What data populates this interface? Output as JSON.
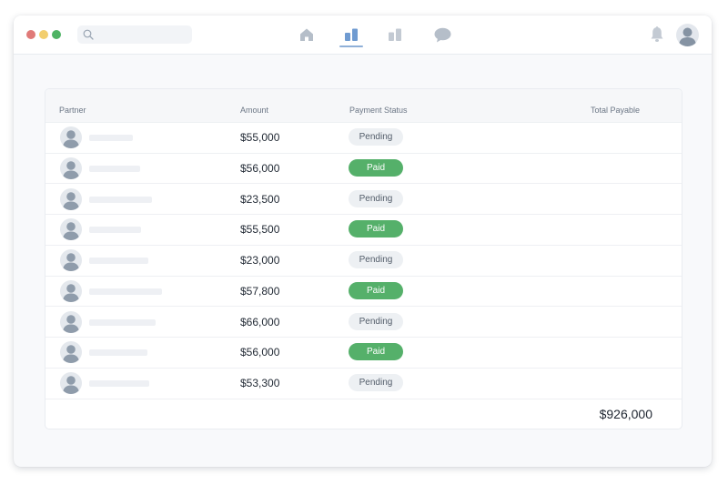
{
  "window": {
    "traffic_lights": [
      "close",
      "minimize",
      "maximize"
    ],
    "search": {
      "placeholder": "",
      "value": ""
    },
    "nav": [
      {
        "icon": "home-icon",
        "active": false
      },
      {
        "icon": "bar-chart-icon",
        "active": true
      },
      {
        "icon": "bar-chart-alt-icon",
        "active": false
      },
      {
        "icon": "chat-icon",
        "active": false
      }
    ],
    "notifications_icon": "bell-icon",
    "user_avatar": "avatar-icon"
  },
  "table": {
    "headers": {
      "partner": "Partner",
      "amount": "Amount",
      "status": "Payment Status",
      "total": "Total Payable"
    },
    "rows": [
      {
        "amount": "$55,000",
        "status": "Pending",
        "name_bar_width": 48
      },
      {
        "amount": "$56,000",
        "status": "Paid",
        "name_bar_width": 56
      },
      {
        "amount": "$23,500",
        "status": "Pending",
        "name_bar_width": 69
      },
      {
        "amount": "$55,500",
        "status": "Paid",
        "name_bar_width": 57
      },
      {
        "amount": "$23,000",
        "status": "Pending",
        "name_bar_width": 65
      },
      {
        "amount": "$57,800",
        "status": "Paid",
        "name_bar_width": 80
      },
      {
        "amount": "$66,000",
        "status": "Pending",
        "name_bar_width": 73
      },
      {
        "amount": "$56,000",
        "status": "Paid",
        "name_bar_width": 64
      },
      {
        "amount": "$53,300",
        "status": "Pending",
        "name_bar_width": 66
      }
    ],
    "total_payable": "$926,000"
  },
  "colors": {
    "paid": "#55b06a",
    "pending_bg": "#edf0f3",
    "nav_active": "#6f9bd1",
    "nav_inactive": "#b7c0cb"
  }
}
